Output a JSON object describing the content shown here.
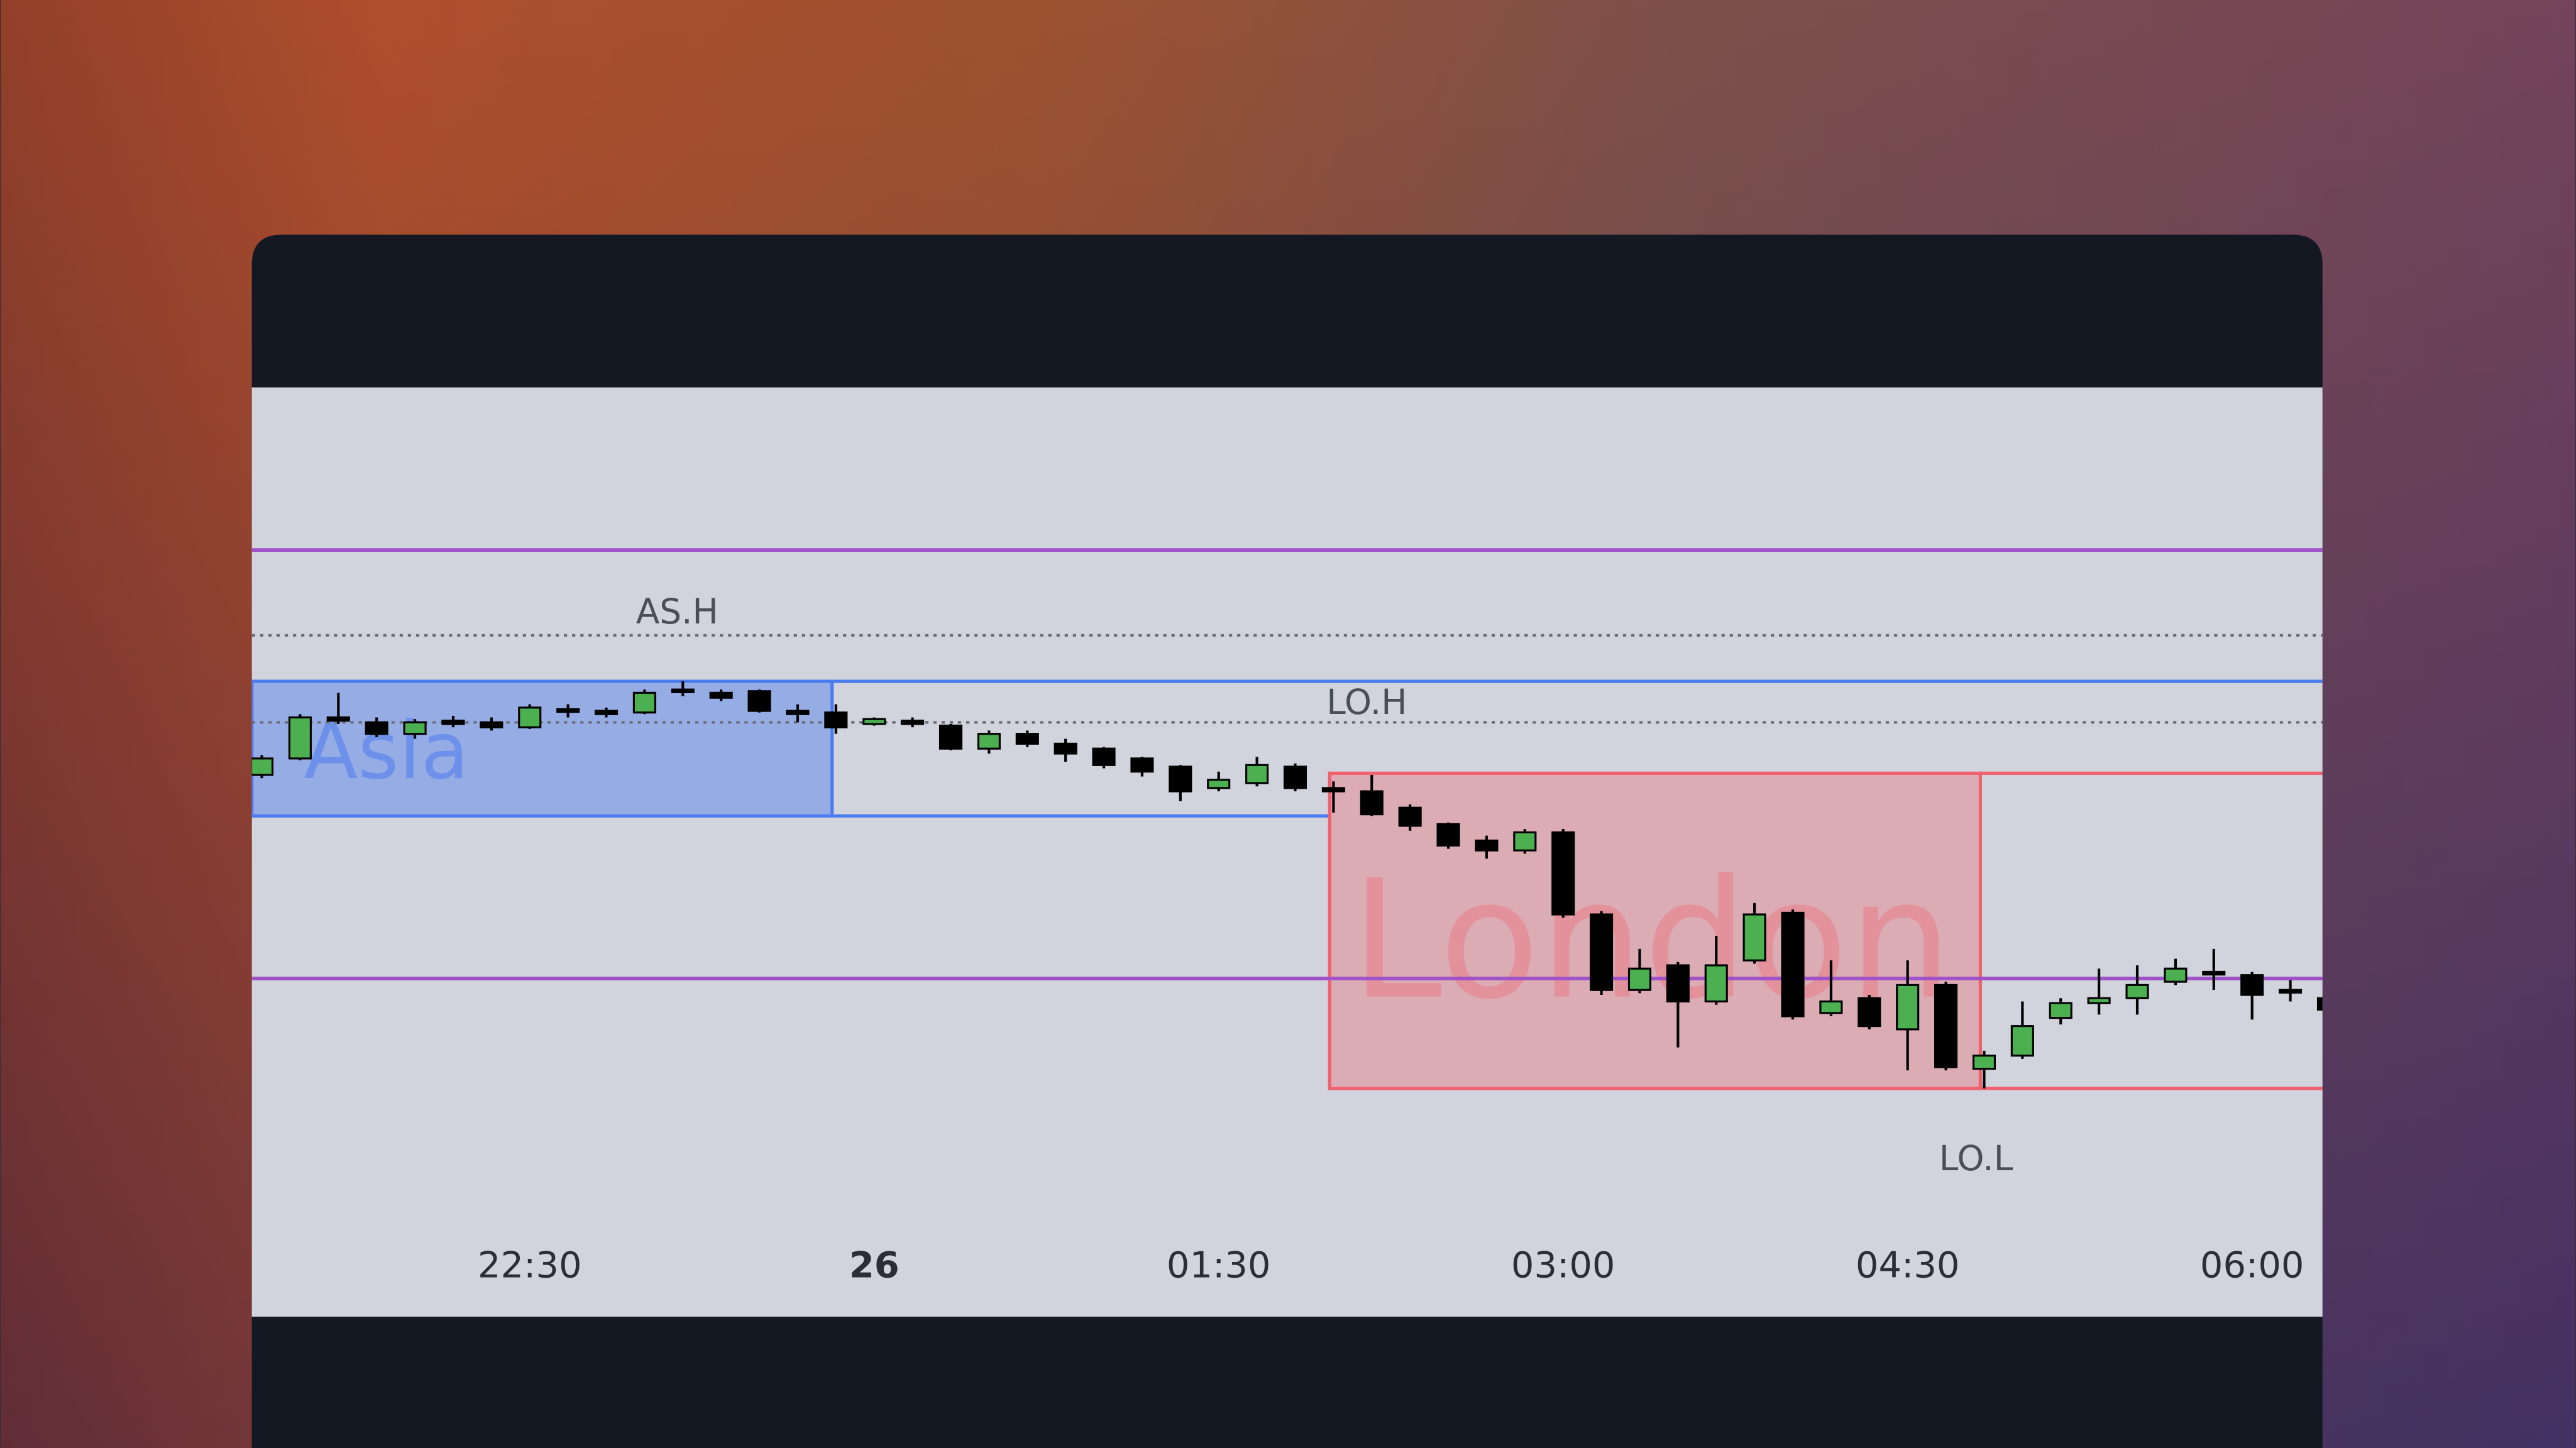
{
  "chart_data": {
    "type": "candlestick",
    "xlim": [
      -0.26,
      53.84
    ],
    "ylim": [
      0,
      566
    ],
    "xticks": [
      {
        "value": 7,
        "label": "22:30"
      },
      {
        "value": 16,
        "label": "26"
      },
      {
        "value": 25,
        "label": "01:30"
      },
      {
        "value": 34,
        "label": "03:00"
      },
      {
        "value": 43,
        "label": "04:30"
      },
      {
        "value": 52,
        "label": "06:00"
      }
    ],
    "up_color": "#4caf50",
    "down_color": "#000000",
    "open": [
      330,
      340,
      365,
      362,
      355,
      363,
      362,
      359,
      370,
      369,
      368,
      382,
      380,
      381,
      369,
      368,
      361,
      363,
      360,
      346,
      355,
      349,
      346,
      340,
      335,
      322,
      325,
      335,
      322,
      320,
      310,
      300,
      290,
      284,
      295,
      245,
      199,
      214,
      192,
      217,
      246,
      185,
      194,
      175,
      202,
      151,
      159,
      182,
      191,
      194,
      204,
      210,
      208,
      199,
      194
    ],
    "close": [
      340,
      365,
      363,
      355,
      362,
      361,
      359,
      371,
      369,
      367,
      380,
      381,
      377,
      369,
      367,
      359,
      364,
      361,
      346,
      355,
      349,
      343,
      336,
      332,
      320,
      327,
      336,
      322,
      320,
      306,
      299,
      287,
      284,
      295,
      245,
      199,
      212,
      192,
      214,
      245,
      183,
      192,
      177,
      202,
      152,
      159,
      177,
      191,
      194,
      202,
      212,
      209,
      196,
      198,
      187
    ],
    "high": [
      342,
      367,
      380,
      365,
      364,
      366,
      365,
      373,
      373,
      371,
      382,
      387,
      382,
      382,
      373,
      373,
      365,
      365,
      361,
      357,
      357,
      352,
      347,
      341,
      336,
      332,
      341,
      337,
      326,
      330,
      312,
      301,
      293,
      297,
      297,
      247,
      224,
      216,
      232,
      252,
      248,
      217,
      196,
      217,
      204,
      162,
      192,
      194,
      212,
      214,
      218,
      224,
      210,
      205,
      197
    ],
    "low": [
      328,
      339,
      361,
      353,
      352,
      359,
      357,
      358,
      365,
      365,
      367,
      378,
      375,
      368,
      362,
      355,
      360,
      359,
      345,
      343,
      347,
      338,
      334,
      329,
      314,
      320,
      323,
      320,
      307,
      305,
      296,
      285,
      279,
      282,
      243,
      196,
      197,
      164,
      190,
      215,
      181,
      183,
      175,
      150,
      150,
      139,
      157,
      178,
      184,
      184,
      202,
      199,
      181,
      192,
      185
    ],
    "hlines": [
      {
        "value": 467,
        "color": "#a052c8"
      },
      {
        "value": 206,
        "color": "#a052c8"
      }
    ],
    "annotations": [
      {
        "text": "AS.H",
        "value": 415,
        "style": "dotted"
      },
      {
        "text": "LO.H",
        "value": 362,
        "style": "dotted"
      },
      {
        "text": "LO.L",
        "value": 139
      }
    ],
    "sessions": [
      {
        "name": "Asia",
        "xrange": [
          -0.26,
          14.9
        ],
        "yrange": [
          305,
          387
        ],
        "color": "#4d7cf0"
      },
      {
        "name": "London",
        "xrange": [
          27.9,
          44.9
        ],
        "yrange": [
          139,
          331
        ],
        "color": "#f0606e"
      }
    ]
  }
}
